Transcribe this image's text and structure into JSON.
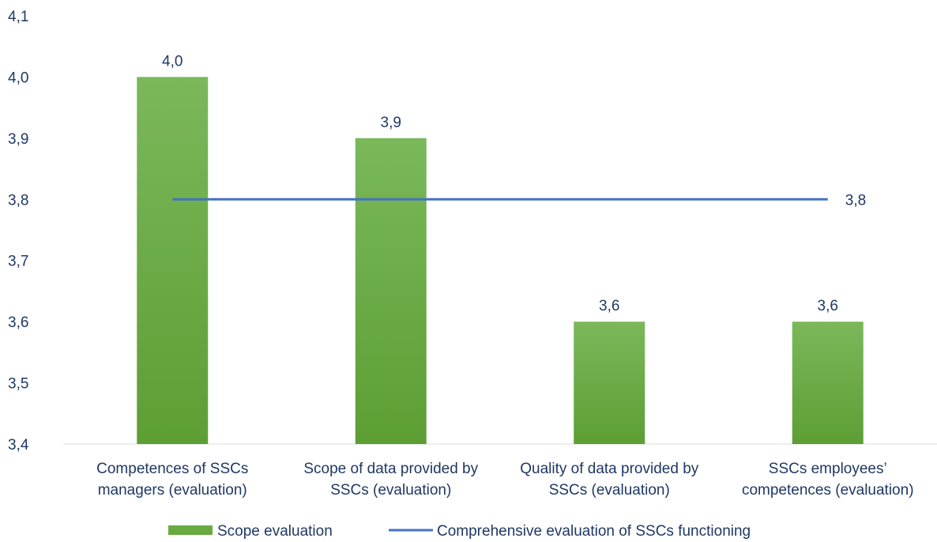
{
  "chart_data": {
    "type": "bar",
    "categories": [
      [
        "Competences of SSCs",
        "managers (evaluation)"
      ],
      [
        "Scope of data provided by",
        "SSCs (evaluation)"
      ],
      [
        "Quality of data provided by",
        "SSCs (evaluation)"
      ],
      [
        "SSCs employees’",
        "competences (evaluation)"
      ]
    ],
    "series": [
      {
        "name": "Scope evaluation",
        "kind": "bar",
        "values": [
          4.0,
          3.9,
          3.6,
          3.6
        ],
        "labels": [
          "4,0",
          "3,9",
          "3,6",
          "3,6"
        ],
        "color": "#6aaa42"
      },
      {
        "name": "Comprehensive evaluation of SSCs functioning",
        "kind": "line",
        "values": [
          3.8,
          3.8,
          3.8,
          3.8
        ],
        "end_label": "3,8",
        "color": "#4472c4"
      }
    ],
    "ylim": [
      3.4,
      4.1
    ],
    "yticks": [
      3.4,
      3.5,
      3.6,
      3.7,
      3.8,
      3.9,
      4.0,
      4.1
    ],
    "ytick_labels": [
      "3,4",
      "3,5",
      "3,6",
      "3,7",
      "3,8",
      "3,9",
      "4,0",
      "4,1"
    ],
    "grid": false,
    "legend_position": "bottom",
    "title": "",
    "xlabel": "",
    "ylabel": ""
  }
}
